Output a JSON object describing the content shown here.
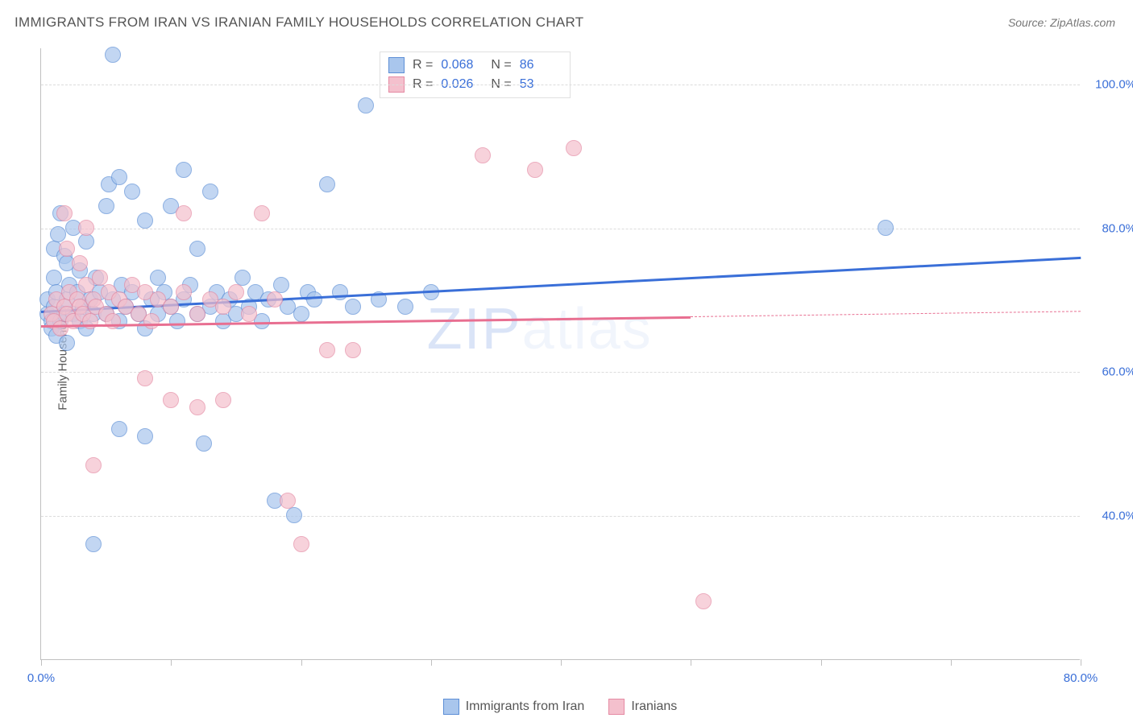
{
  "title": "IMMIGRANTS FROM IRAN VS IRANIAN FAMILY HOUSEHOLDS CORRELATION CHART",
  "source": "Source: ZipAtlas.com",
  "watermark_a": "ZIP",
  "watermark_b": "atlas",
  "chart": {
    "type": "scatter",
    "ylabel": "Family Households",
    "background_color": "#ffffff",
    "grid_color": "#dcdcdc",
    "axis_color": "#c0c0c0",
    "text_color": "#555555",
    "value_color": "#3a6fd8",
    "xlim": [
      0,
      80
    ],
    "ylim": [
      20,
      105
    ],
    "xtick_step": 10,
    "xtick_labels": {
      "0": "0.0%",
      "80": "80.0%"
    },
    "ytick_step": 20,
    "ytick_start": 40,
    "ytick_labels": {
      "40": "40.0%",
      "60": "60.0%",
      "80": "80.0%",
      "100": "100.0%"
    },
    "marker_radius": 10,
    "marker_border_width": 1.2,
    "marker_fill_opacity": 0.25,
    "line_width": 2.5,
    "series": [
      {
        "id": "immigrants",
        "label": "Immigrants from Iran",
        "color_fill": "#a9c6ed",
        "color_border": "#5d8fd6",
        "color_line": "#3a6fd8",
        "r_value": "0.068",
        "n_value": "86",
        "regression": {
          "x0": 0,
          "y0": 68.5,
          "x1": 80,
          "y1": 76.0,
          "dash_after_x": 80
        },
        "points": [
          [
            0.5,
            68
          ],
          [
            0.5,
            70
          ],
          [
            0.8,
            67
          ],
          [
            0.8,
            66
          ],
          [
            1.0,
            69
          ],
          [
            1.0,
            73
          ],
          [
            1.0,
            77
          ],
          [
            1.2,
            65
          ],
          [
            1.2,
            71
          ],
          [
            1.3,
            79
          ],
          [
            1.5,
            67
          ],
          [
            1.5,
            82
          ],
          [
            1.8,
            68
          ],
          [
            1.8,
            76
          ],
          [
            2.0,
            64
          ],
          [
            2.0,
            70
          ],
          [
            2.0,
            75
          ],
          [
            2.2,
            72
          ],
          [
            2.5,
            68
          ],
          [
            2.5,
            80
          ],
          [
            2.8,
            71
          ],
          [
            3.0,
            67
          ],
          [
            3.0,
            74
          ],
          [
            3.2,
            69
          ],
          [
            3.5,
            66
          ],
          [
            3.5,
            78
          ],
          [
            3.8,
            70
          ],
          [
            4.0,
            68
          ],
          [
            4.2,
            73
          ],
          [
            4.5,
            71
          ],
          [
            5.0,
            68
          ],
          [
            5.0,
            83
          ],
          [
            5.2,
            86
          ],
          [
            5.5,
            70
          ],
          [
            5.5,
            104
          ],
          [
            6.0,
            67
          ],
          [
            6.0,
            87
          ],
          [
            6.2,
            72
          ],
          [
            6.5,
            69
          ],
          [
            7.0,
            71
          ],
          [
            7.0,
            85
          ],
          [
            7.5,
            68
          ],
          [
            8.0,
            66
          ],
          [
            8.0,
            81
          ],
          [
            8.5,
            70
          ],
          [
            9.0,
            68
          ],
          [
            9.0,
            73
          ],
          [
            9.5,
            71
          ],
          [
            10.0,
            69
          ],
          [
            10.0,
            83
          ],
          [
            10.5,
            67
          ],
          [
            11.0,
            70
          ],
          [
            11.0,
            88
          ],
          [
            11.5,
            72
          ],
          [
            12.0,
            68
          ],
          [
            12.0,
            77
          ],
          [
            12.5,
            50
          ],
          [
            13.0,
            69
          ],
          [
            13.0,
            85
          ],
          [
            13.5,
            71
          ],
          [
            14.0,
            67
          ],
          [
            14.5,
            70
          ],
          [
            15.0,
            68
          ],
          [
            15.5,
            73
          ],
          [
            16.0,
            69
          ],
          [
            16.5,
            71
          ],
          [
            17.0,
            67
          ],
          [
            17.5,
            70
          ],
          [
            18.0,
            42
          ],
          [
            18.5,
            72
          ],
          [
            19.0,
            69
          ],
          [
            19.5,
            40
          ],
          [
            20.0,
            68
          ],
          [
            20.5,
            71
          ],
          [
            21.0,
            70
          ],
          [
            22.0,
            86
          ],
          [
            23.0,
            71
          ],
          [
            24.0,
            69
          ],
          [
            25.0,
            97
          ],
          [
            26.0,
            70
          ],
          [
            28.0,
            69
          ],
          [
            30.0,
            71
          ],
          [
            6.0,
            52
          ],
          [
            8.0,
            51
          ],
          [
            4.0,
            36
          ],
          [
            65.0,
            80
          ]
        ]
      },
      {
        "id": "iranians",
        "label": "Iranians",
        "color_fill": "#f4c0cd",
        "color_border": "#e58aa3",
        "color_line": "#e86f91",
        "r_value": "0.026",
        "n_value": "53",
        "regression": {
          "x0": 0,
          "y0": 66.5,
          "x1": 80,
          "y1": 68.5,
          "dash_after_x": 50
        },
        "points": [
          [
            0.8,
            68
          ],
          [
            1.0,
            67
          ],
          [
            1.2,
            70
          ],
          [
            1.5,
            66
          ],
          [
            1.8,
            69
          ],
          [
            1.8,
            82
          ],
          [
            2.0,
            68
          ],
          [
            2.0,
            77
          ],
          [
            2.2,
            71
          ],
          [
            2.5,
            67
          ],
          [
            2.8,
            70
          ],
          [
            3.0,
            69
          ],
          [
            3.0,
            75
          ],
          [
            3.2,
            68
          ],
          [
            3.5,
            72
          ],
          [
            3.5,
            80
          ],
          [
            3.8,
            67
          ],
          [
            4.0,
            70
          ],
          [
            4.2,
            69
          ],
          [
            4.5,
            73
          ],
          [
            5.0,
            68
          ],
          [
            5.2,
            71
          ],
          [
            5.5,
            67
          ],
          [
            6.0,
            70
          ],
          [
            6.5,
            69
          ],
          [
            7.0,
            72
          ],
          [
            7.5,
            68
          ],
          [
            8.0,
            71
          ],
          [
            8.5,
            67
          ],
          [
            9.0,
            70
          ],
          [
            10.0,
            69
          ],
          [
            11.0,
            71
          ],
          [
            11.0,
            82
          ],
          [
            12.0,
            68
          ],
          [
            13.0,
            70
          ],
          [
            14.0,
            69
          ],
          [
            15.0,
            71
          ],
          [
            16.0,
            68
          ],
          [
            17.0,
            82
          ],
          [
            18.0,
            70
          ],
          [
            19.0,
            42
          ],
          [
            20.0,
            36
          ],
          [
            22.0,
            63
          ],
          [
            24.0,
            63
          ],
          [
            8.0,
            59
          ],
          [
            10.0,
            56
          ],
          [
            12.0,
            55
          ],
          [
            14.0,
            56
          ],
          [
            4.0,
            47
          ],
          [
            34.0,
            90
          ],
          [
            38.0,
            88
          ],
          [
            41.0,
            91
          ],
          [
            51.0,
            28
          ]
        ]
      }
    ]
  },
  "legend_top": {
    "r_label": "R =",
    "n_label": "N ="
  }
}
